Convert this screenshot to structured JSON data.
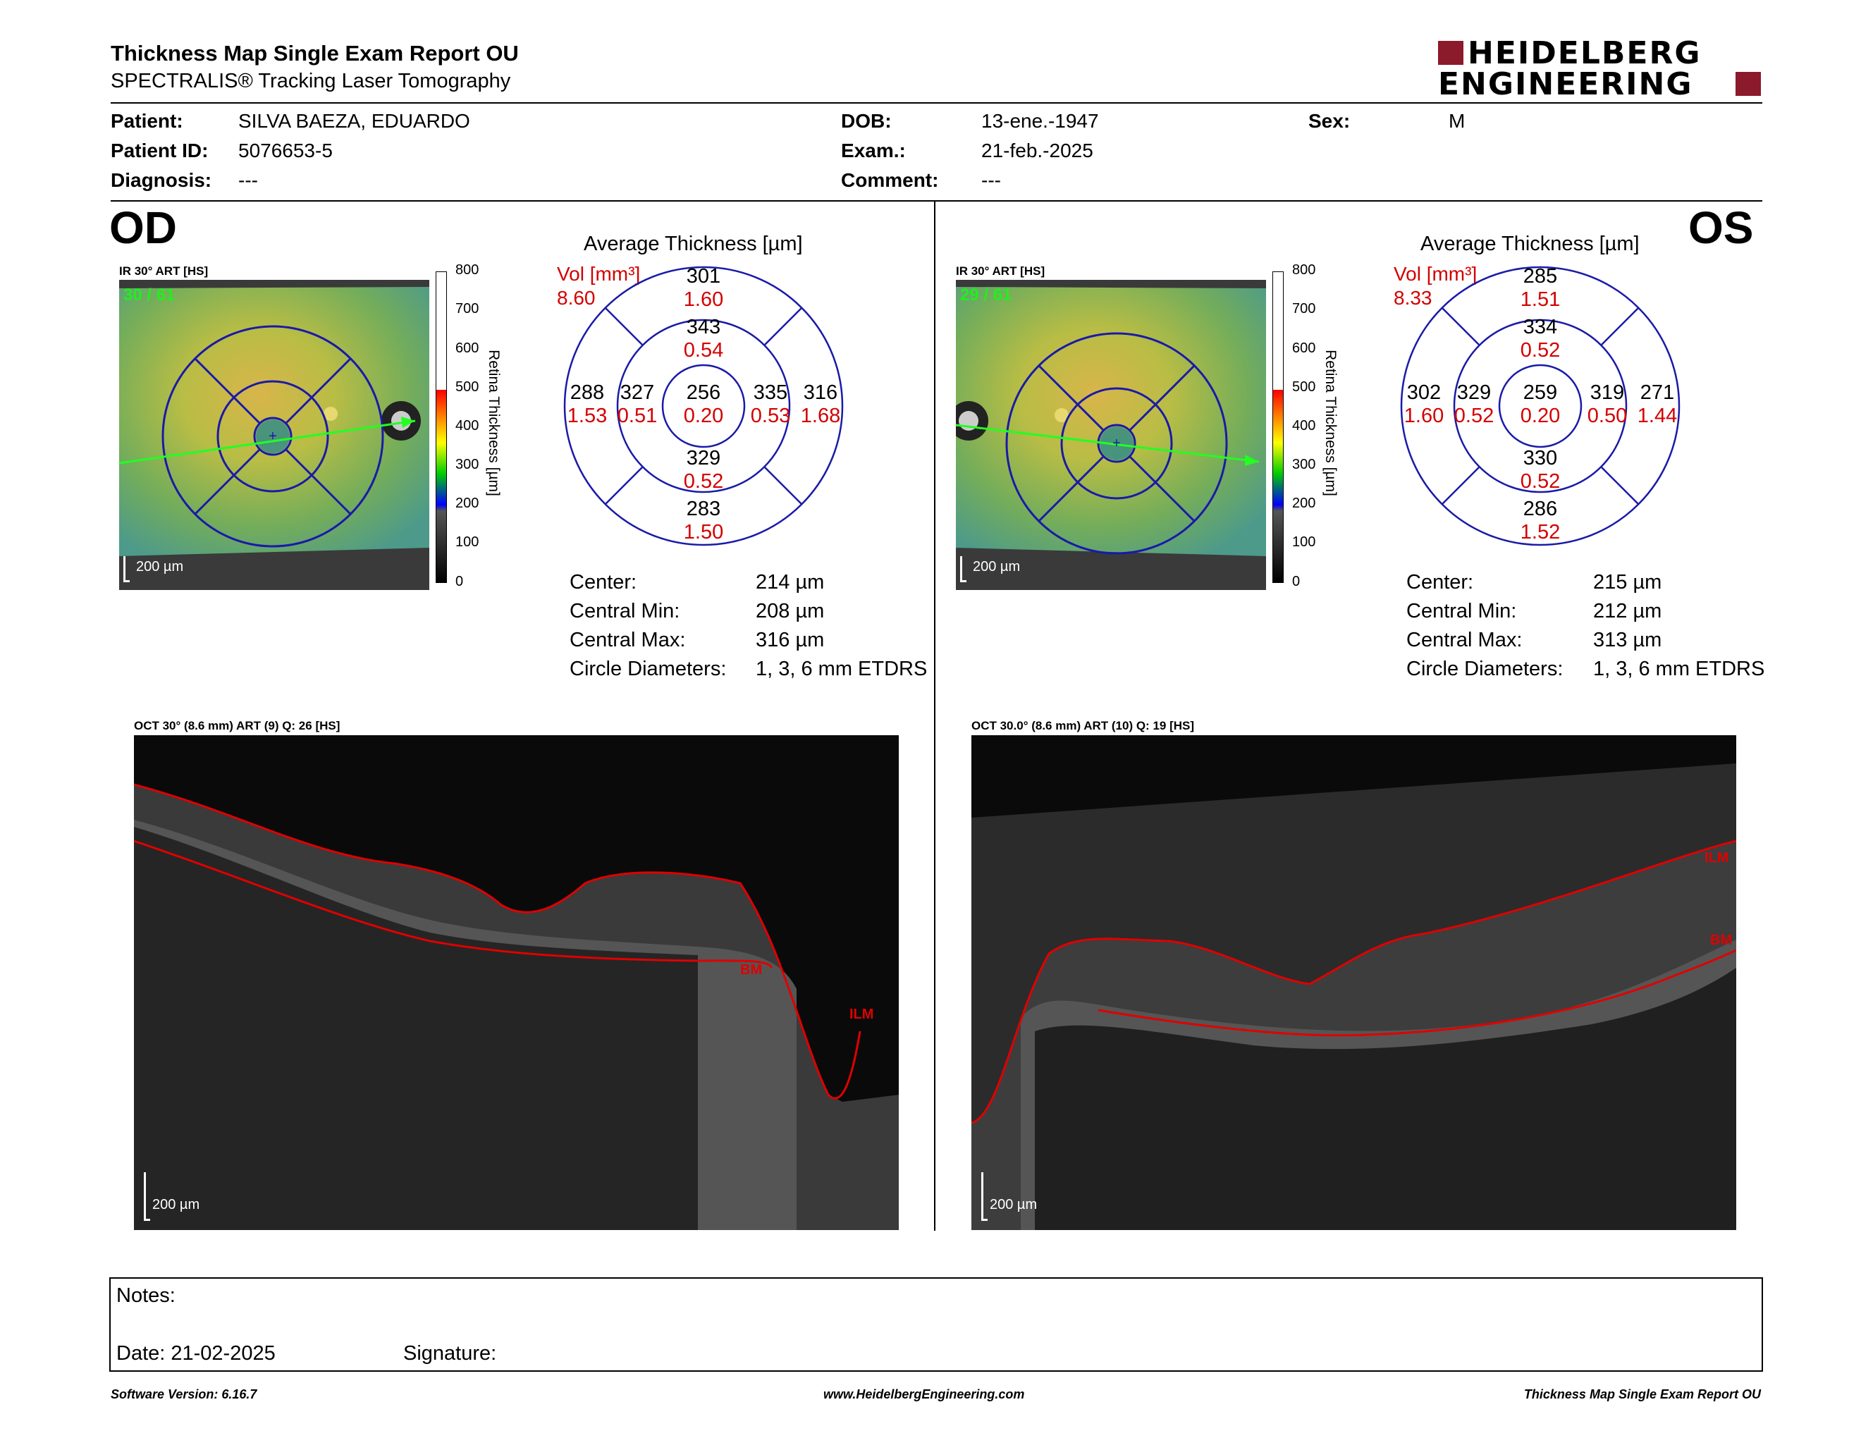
{
  "header": {
    "title": "Thickness Map Single Exam Report OU",
    "subtitle": "SPECTRALIS® Tracking Laser Tomography",
    "logo_line1": "HEIDELBERG",
    "logo_line2": "ENGINEERING"
  },
  "patient": {
    "patient_label": "Patient:",
    "patient_value": "SILVA BAEZA, EDUARDO",
    "id_label": "Patient ID:",
    "id_value": "5076653-5",
    "diagnosis_label": "Diagnosis:",
    "diagnosis_value": "---",
    "dob_label": "DOB:",
    "dob_value": "13-ene.-1947",
    "exam_label": "Exam.:",
    "exam_value": "21-feb.-2025",
    "comment_label": "Comment:",
    "comment_value": "---",
    "sex_label": "Sex:",
    "sex_value": "M"
  },
  "od": {
    "eye": "OD",
    "ir_label": "IR 30° ART [HS]",
    "frames": "30 / 61",
    "scale": "200 µm",
    "avg_title": "Average Thickness [µm]",
    "vol_label": "Vol [mm³]",
    "vol_value": "8.60",
    "sectors": {
      "center": [
        "256",
        "0.20"
      ],
      "inner_sup": [
        "343",
        "0.54"
      ],
      "inner_inf": [
        "329",
        "0.52"
      ],
      "inner_left": [
        "327",
        "0.51"
      ],
      "inner_right": [
        "335",
        "0.53"
      ],
      "outer_sup": [
        "301",
        "1.60"
      ],
      "outer_inf": [
        "283",
        "1.50"
      ],
      "outer_left": [
        "288",
        "1.53"
      ],
      "outer_right": [
        "316",
        "1.68"
      ]
    },
    "stats": [
      {
        "label": "Center:",
        "value": "214 µm"
      },
      {
        "label": "Central Min:",
        "value": "208 µm"
      },
      {
        "label": "Central Max:",
        "value": "316 µm"
      },
      {
        "label": "Circle Diameters:",
        "value": "1, 3, 6 mm ETDRS"
      }
    ],
    "oct_label": "OCT 30° (8.6 mm) ART (9) Q: 26 [HS]",
    "oct_scale": "200 µm",
    "ilm": "ILM",
    "bm": "BM"
  },
  "os": {
    "eye": "OS",
    "ir_label": "IR 30° ART [HS]",
    "frames": "29 / 61",
    "scale": "200 µm",
    "avg_title": "Average Thickness [µm]",
    "vol_label": "Vol [mm³]",
    "vol_value": "8.33",
    "sectors": {
      "center": [
        "259",
        "0.20"
      ],
      "inner_sup": [
        "334",
        "0.52"
      ],
      "inner_inf": [
        "330",
        "0.52"
      ],
      "inner_left": [
        "329",
        "0.52"
      ],
      "inner_right": [
        "319",
        "0.50"
      ],
      "outer_sup": [
        "285",
        "1.51"
      ],
      "outer_inf": [
        "286",
        "1.52"
      ],
      "outer_left": [
        "302",
        "1.60"
      ],
      "outer_right": [
        "271",
        "1.44"
      ]
    },
    "stats": [
      {
        "label": "Center:",
        "value": "215 µm"
      },
      {
        "label": "Central Min:",
        "value": "212 µm"
      },
      {
        "label": "Central Max:",
        "value": "313 µm"
      },
      {
        "label": "Circle Diameters:",
        "value": "1, 3, 6 mm ETDRS"
      }
    ],
    "oct_label": "OCT 30.0° (8.6 mm) ART (10) Q: 19 [HS]",
    "oct_scale": "200 µm",
    "ilm": "ILM",
    "bm": "BM"
  },
  "colorbar": {
    "ticks": [
      "800",
      "700",
      "600",
      "500",
      "400",
      "300",
      "200",
      "100",
      "0"
    ],
    "axis_label": "Retina Thickness [µm]"
  },
  "notes": {
    "notes_label": "Notes:",
    "date_label": "Date: 21-02-2025",
    "signature_label": "Signature:"
  },
  "footer": {
    "software": "Software Version: 6.16.7",
    "website": "www.HeidelbergEngineering.com",
    "report": "Thickness Map Single Exam Report OU"
  },
  "colors": {
    "sector_text_red": "#d40000",
    "circle_blue": "#1a1aa8",
    "logo_red": "#8b1a2b",
    "ilm_red": "#d40000"
  }
}
